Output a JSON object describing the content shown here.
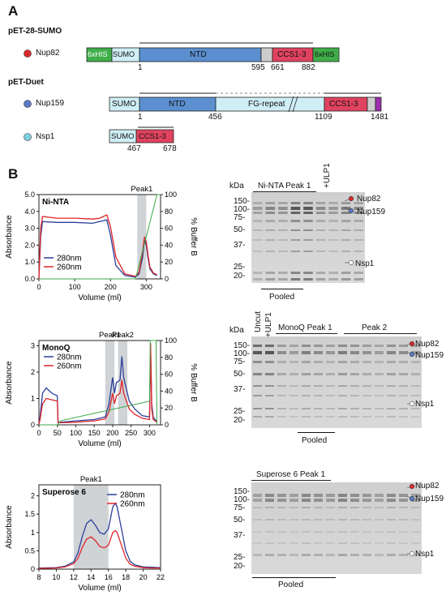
{
  "panel_a": {
    "letter": "A",
    "vector1": "pET-28-SUMO",
    "vector2": "pET-Duet",
    "nup82": {
      "name": "Nup82",
      "dot_color": "#d62a2a",
      "seg_6xhis_left": "6xHIS",
      "seg_sumo": "SUMO",
      "seg_ntd": "NTD",
      "seg_ccs": "CCS1-3",
      "seg_6xhis_right": "6xHIS",
      "n_start": "1",
      "n_595": "595",
      "n_661": "661",
      "n_882": "882"
    },
    "nup159": {
      "name": "Nup159",
      "dot_color": "#5b79c4",
      "seg_sumo": "SUMO",
      "seg_ntd": "NTD",
      "seg_fg": "FG-repeat",
      "seg_ccs": "CCS1-3",
      "n_start": "1",
      "n_456": "456",
      "n_1109": "1109",
      "n_1481": "1481"
    },
    "nsp1": {
      "name": "Nsp1",
      "dot_color": "#7fd0e0",
      "seg_sumo": "SUMO",
      "seg_ccs": "CCS1-3",
      "n_467": "467",
      "n_678": "678"
    },
    "colors": {
      "his": "#3fae49",
      "sumo": "#cfeef5",
      "ntd": "#5b8fd0",
      "ccs": "#e0435f",
      "grey": "#cccccc",
      "fg": "#cfeef5",
      "purple": "#9b2fae"
    }
  },
  "panel_b": {
    "letter": "B",
    "gel_kda_label": "kDa",
    "nup82_label": "Nup82",
    "nup159_label": "Nup159",
    "nsp1_label": "Nsp1",
    "pooled_label": "Pooled",
    "gel1": {
      "title": "Ni-NTA Peak 1",
      "ulp1": "+ULP1",
      "ladder": [
        "150-",
        "100-",
        "75-",
        "50-",
        "37-",
        "25-",
        "20-"
      ]
    },
    "gel2": {
      "uncut": "Uncut",
      "ulp1": "+ULP1",
      "title1": "MonoQ Peak 1",
      "title2": "Peak 2",
      "ladder": [
        "150-",
        "100-",
        "75-",
        "50-",
        "37-",
        "25-",
        "20-"
      ]
    },
    "gel3": {
      "title": "Superose 6 Peak 1",
      "ladder": [
        "150-",
        "100-",
        "75-",
        "50-",
        "37-",
        "25-",
        "20-"
      ]
    }
  },
  "chart_data": [
    {
      "type": "line",
      "title": "Ni-NTA",
      "xlabel": "Volume (ml)",
      "ylabel": "Absorbance",
      "y2label": "% Buffer B",
      "xlim": [
        0,
        340
      ],
      "ylim": [
        0,
        5.0
      ],
      "y2lim": [
        0,
        100
      ],
      "xticks": [
        "0",
        "100",
        "200",
        "300"
      ],
      "yticks": [
        "0.0",
        "1.0",
        "2.0",
        "3.0",
        "4.0",
        "5.0"
      ],
      "y2ticks": [
        "0",
        "20",
        "40",
        "60",
        "80",
        "100"
      ],
      "peaks": [
        {
          "label": "Peak1",
          "from": 275,
          "to": 300
        }
      ],
      "legend_position": "bottom-left",
      "series": [
        {
          "name": "280nm",
          "color": "#2b3f9b",
          "x": [
            0,
            5,
            10,
            50,
            100,
            150,
            170,
            190,
            200,
            215,
            240,
            270,
            280,
            290,
            295,
            300,
            305,
            310,
            320,
            330
          ],
          "y": [
            0,
            2.5,
            3.4,
            3.35,
            3.35,
            3.3,
            3.4,
            3.5,
            2.6,
            0.8,
            0.2,
            0.1,
            0.3,
            1.3,
            2.3,
            2.0,
            1.2,
            0.6,
            0.3,
            0.2
          ]
        },
        {
          "name": "260nm",
          "color": "#e0252a",
          "x": [
            0,
            5,
            10,
            50,
            100,
            150,
            170,
            190,
            200,
            215,
            240,
            270,
            280,
            290,
            295,
            300,
            305,
            310,
            320,
            330
          ],
          "y": [
            0,
            3.0,
            3.7,
            3.6,
            3.6,
            3.55,
            3.6,
            3.8,
            3.1,
            1.3,
            0.3,
            0.15,
            0.4,
            1.6,
            2.5,
            2.2,
            1.4,
            0.7,
            0.35,
            0.25
          ]
        },
        {
          "name": "",
          "color": "#39a845",
          "axis": "y2",
          "x": [
            0,
            270,
            330,
            332,
            340
          ],
          "y": [
            0,
            0,
            100,
            100,
            100
          ]
        }
      ]
    },
    {
      "type": "line",
      "title": "MonoQ",
      "xlabel": "Volume (ml)",
      "ylabel": "Absorbance",
      "y2label": "% Buffer B",
      "xlim": [
        0,
        330
      ],
      "ylim": [
        0,
        3.2
      ],
      "y2lim": [
        0,
        100
      ],
      "xticks": [
        "0",
        "50",
        "100",
        "150",
        "200",
        "250",
        "300"
      ],
      "yticks": [
        "0",
        "1",
        "2",
        "3"
      ],
      "y2ticks": [
        "0",
        "20",
        "40",
        "60",
        "80",
        "100"
      ],
      "peaks": [
        {
          "label": "Peak1",
          "from": 180,
          "to": 205
        },
        {
          "label": "Peak2",
          "from": 215,
          "to": 240
        }
      ],
      "legend_position": "top-left",
      "series": [
        {
          "name": "280nm",
          "color": "#2b3f9b",
          "x": [
            0,
            3,
            10,
            20,
            35,
            50,
            52,
            60,
            100,
            150,
            180,
            190,
            200,
            205,
            210,
            220,
            225,
            230,
            245,
            260,
            280,
            300,
            303,
            306,
            310,
            315,
            320
          ],
          "y": [
            0,
            0.3,
            1.2,
            1.4,
            1.2,
            1.1,
            0.1,
            0.1,
            0.15,
            0.2,
            0.3,
            0.8,
            1.8,
            1.2,
            1.6,
            1.7,
            2.6,
            1.8,
            0.9,
            0.6,
            0.35,
            0.3,
            2.9,
            0.8,
            0.3,
            0.2,
            0.15
          ]
        },
        {
          "name": "260nm",
          "color": "#e0252a",
          "x": [
            0,
            3,
            10,
            20,
            35,
            50,
            52,
            60,
            100,
            150,
            180,
            190,
            200,
            205,
            210,
            220,
            225,
            230,
            245,
            260,
            280,
            300,
            303,
            306,
            310,
            315,
            320
          ],
          "y": [
            0,
            0.2,
            0.8,
            1.0,
            0.95,
            0.9,
            0.08,
            0.08,
            0.1,
            0.15,
            0.22,
            0.5,
            1.2,
            0.8,
            1.1,
            1.2,
            1.7,
            1.2,
            0.6,
            0.4,
            0.25,
            0.2,
            3.1,
            0.6,
            0.2,
            0.15,
            0.1
          ]
        },
        {
          "name": "",
          "color": "#39a845",
          "axis": "y2",
          "x": [
            0,
            50,
            60,
            300,
            302,
            318,
            320
          ],
          "y": [
            0,
            0,
            5,
            28,
            100,
            100,
            0
          ]
        }
      ]
    },
    {
      "type": "line",
      "title": "Superose 6",
      "xlabel": "Volume (ml)",
      "ylabel": "Absorbance",
      "xlim": [
        8,
        22
      ],
      "ylim": [
        0,
        2.3
      ],
      "xticks": [
        "8",
        "10",
        "12",
        "14",
        "16",
        "18",
        "20",
        "22"
      ],
      "yticks": [
        "0",
        "0.5",
        "1",
        "1.5",
        "2"
      ],
      "peaks": [
        {
          "label": "Peak1",
          "from": 12,
          "to": 16
        }
      ],
      "legend_position": "top-right",
      "series": [
        {
          "name": "280nm",
          "color": "#2b3f9b",
          "x": [
            8,
            10,
            11,
            12,
            12.5,
            13,
            13.5,
            14,
            14.5,
            15,
            15.5,
            16,
            16.5,
            16.8,
            17,
            17.5,
            18,
            18.5,
            19,
            20,
            21,
            22
          ],
          "y": [
            0.03,
            0.04,
            0.08,
            0.2,
            0.45,
            0.9,
            1.25,
            1.35,
            1.2,
            1.0,
            0.95,
            1.1,
            1.7,
            1.8,
            1.7,
            1.1,
            0.5,
            0.22,
            0.12,
            0.06,
            0.05,
            0.04
          ]
        },
        {
          "name": "260nm",
          "color": "#e0252a",
          "x": [
            8,
            10,
            11,
            12,
            12.5,
            13,
            13.5,
            14,
            14.5,
            15,
            15.5,
            16,
            16.5,
            16.8,
            17,
            17.5,
            18,
            18.5,
            19,
            20,
            21,
            22
          ],
          "y": [
            0.02,
            0.03,
            0.06,
            0.15,
            0.3,
            0.6,
            0.82,
            0.88,
            0.78,
            0.62,
            0.58,
            0.65,
            1.0,
            1.05,
            1.0,
            0.65,
            0.3,
            0.14,
            0.08,
            0.04,
            0.03,
            0.03
          ]
        }
      ]
    }
  ]
}
